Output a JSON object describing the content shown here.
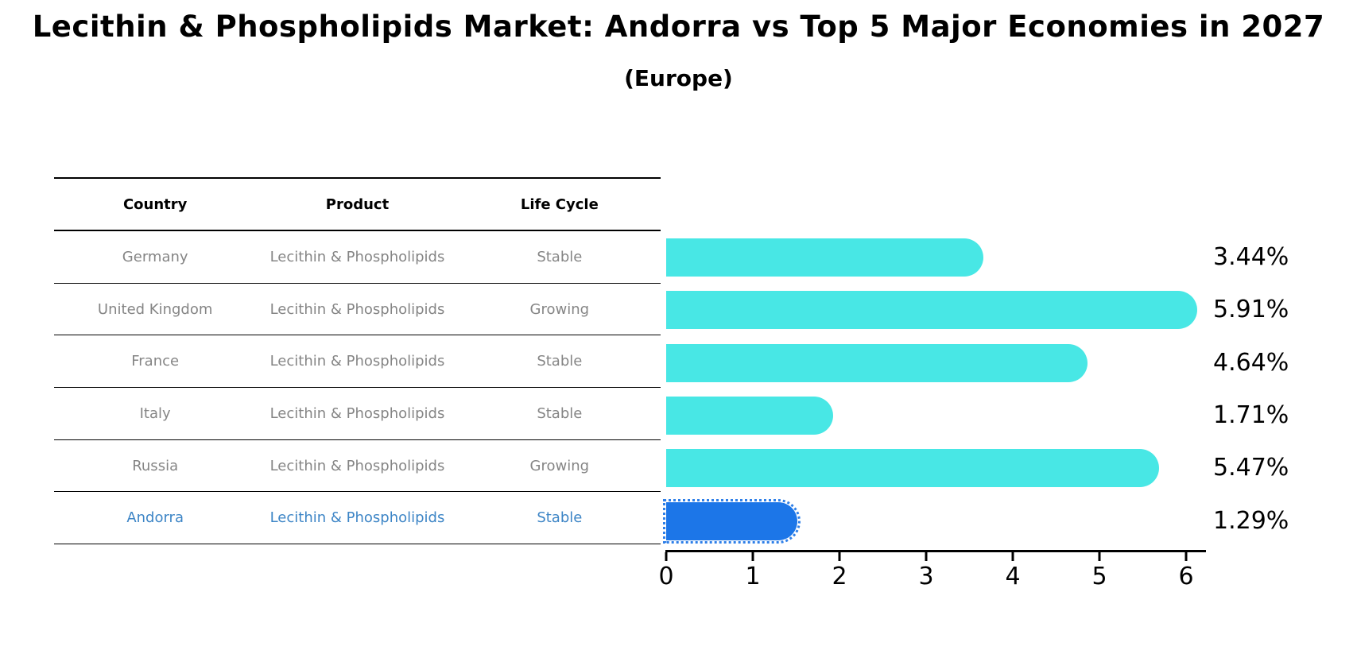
{
  "header": {
    "title": "Lecithin & Phospholipids Market: Andorra vs Top 5 Major Economies in 2027",
    "subtitle": "(Europe)"
  },
  "table": {
    "columns": [
      "Country",
      "Product",
      "Life Cycle"
    ],
    "rows": [
      {
        "country": "Germany",
        "product": "Lecithin & Phospholipids",
        "life_cycle": "Stable",
        "share": "3.44%"
      },
      {
        "country": "United Kingdom",
        "product": "Lecithin & Phospholipids",
        "life_cycle": "Growing",
        "share": "5.91%"
      },
      {
        "country": "France",
        "product": "Lecithin & Phospholipids",
        "life_cycle": "Stable",
        "share": "4.64%"
      },
      {
        "country": "Italy",
        "product": "Lecithin & Phospholipids",
        "life_cycle": "Stable",
        "share": "1.71%"
      },
      {
        "country": "Russia",
        "product": "Lecithin & Phospholipids",
        "life_cycle": "Growing",
        "share": "5.47%"
      },
      {
        "country": "Andorra",
        "product": "Lecithin & Phospholipids",
        "life_cycle": "Stable",
        "share": "1.29%"
      }
    ],
    "highlight_row": "Andorra"
  },
  "chart_data": {
    "type": "bar",
    "orientation": "horizontal",
    "title": "Lecithin & Phospholipids Market: Andorra vs Top 5 Major Economies in 2027",
    "subtitle": "(Europe)",
    "categories": [
      "Germany",
      "United Kingdom",
      "France",
      "Italy",
      "Russia",
      "Andorra"
    ],
    "values": [
      3.44,
      5.91,
      4.64,
      1.71,
      5.47,
      1.29
    ],
    "value_labels": [
      "3.44%",
      "5.91%",
      "4.64%",
      "1.71%",
      "5.47%",
      "1.29%"
    ],
    "life_cycle": [
      "Stable",
      "Growing",
      "Stable",
      "Stable",
      "Growing",
      "Stable"
    ],
    "xlabel": "",
    "ylabel": "",
    "xlim": [
      0,
      6.22
    ],
    "xticks": [
      0,
      1,
      2,
      3,
      4,
      5,
      6
    ],
    "grid": false,
    "legend": false,
    "bar_color": "#48E7E5",
    "highlight_color": "#1C76E8",
    "highlight_text_color": "#3d85c6",
    "highlight_index": 5,
    "highlight_style": "dotted-border"
  }
}
